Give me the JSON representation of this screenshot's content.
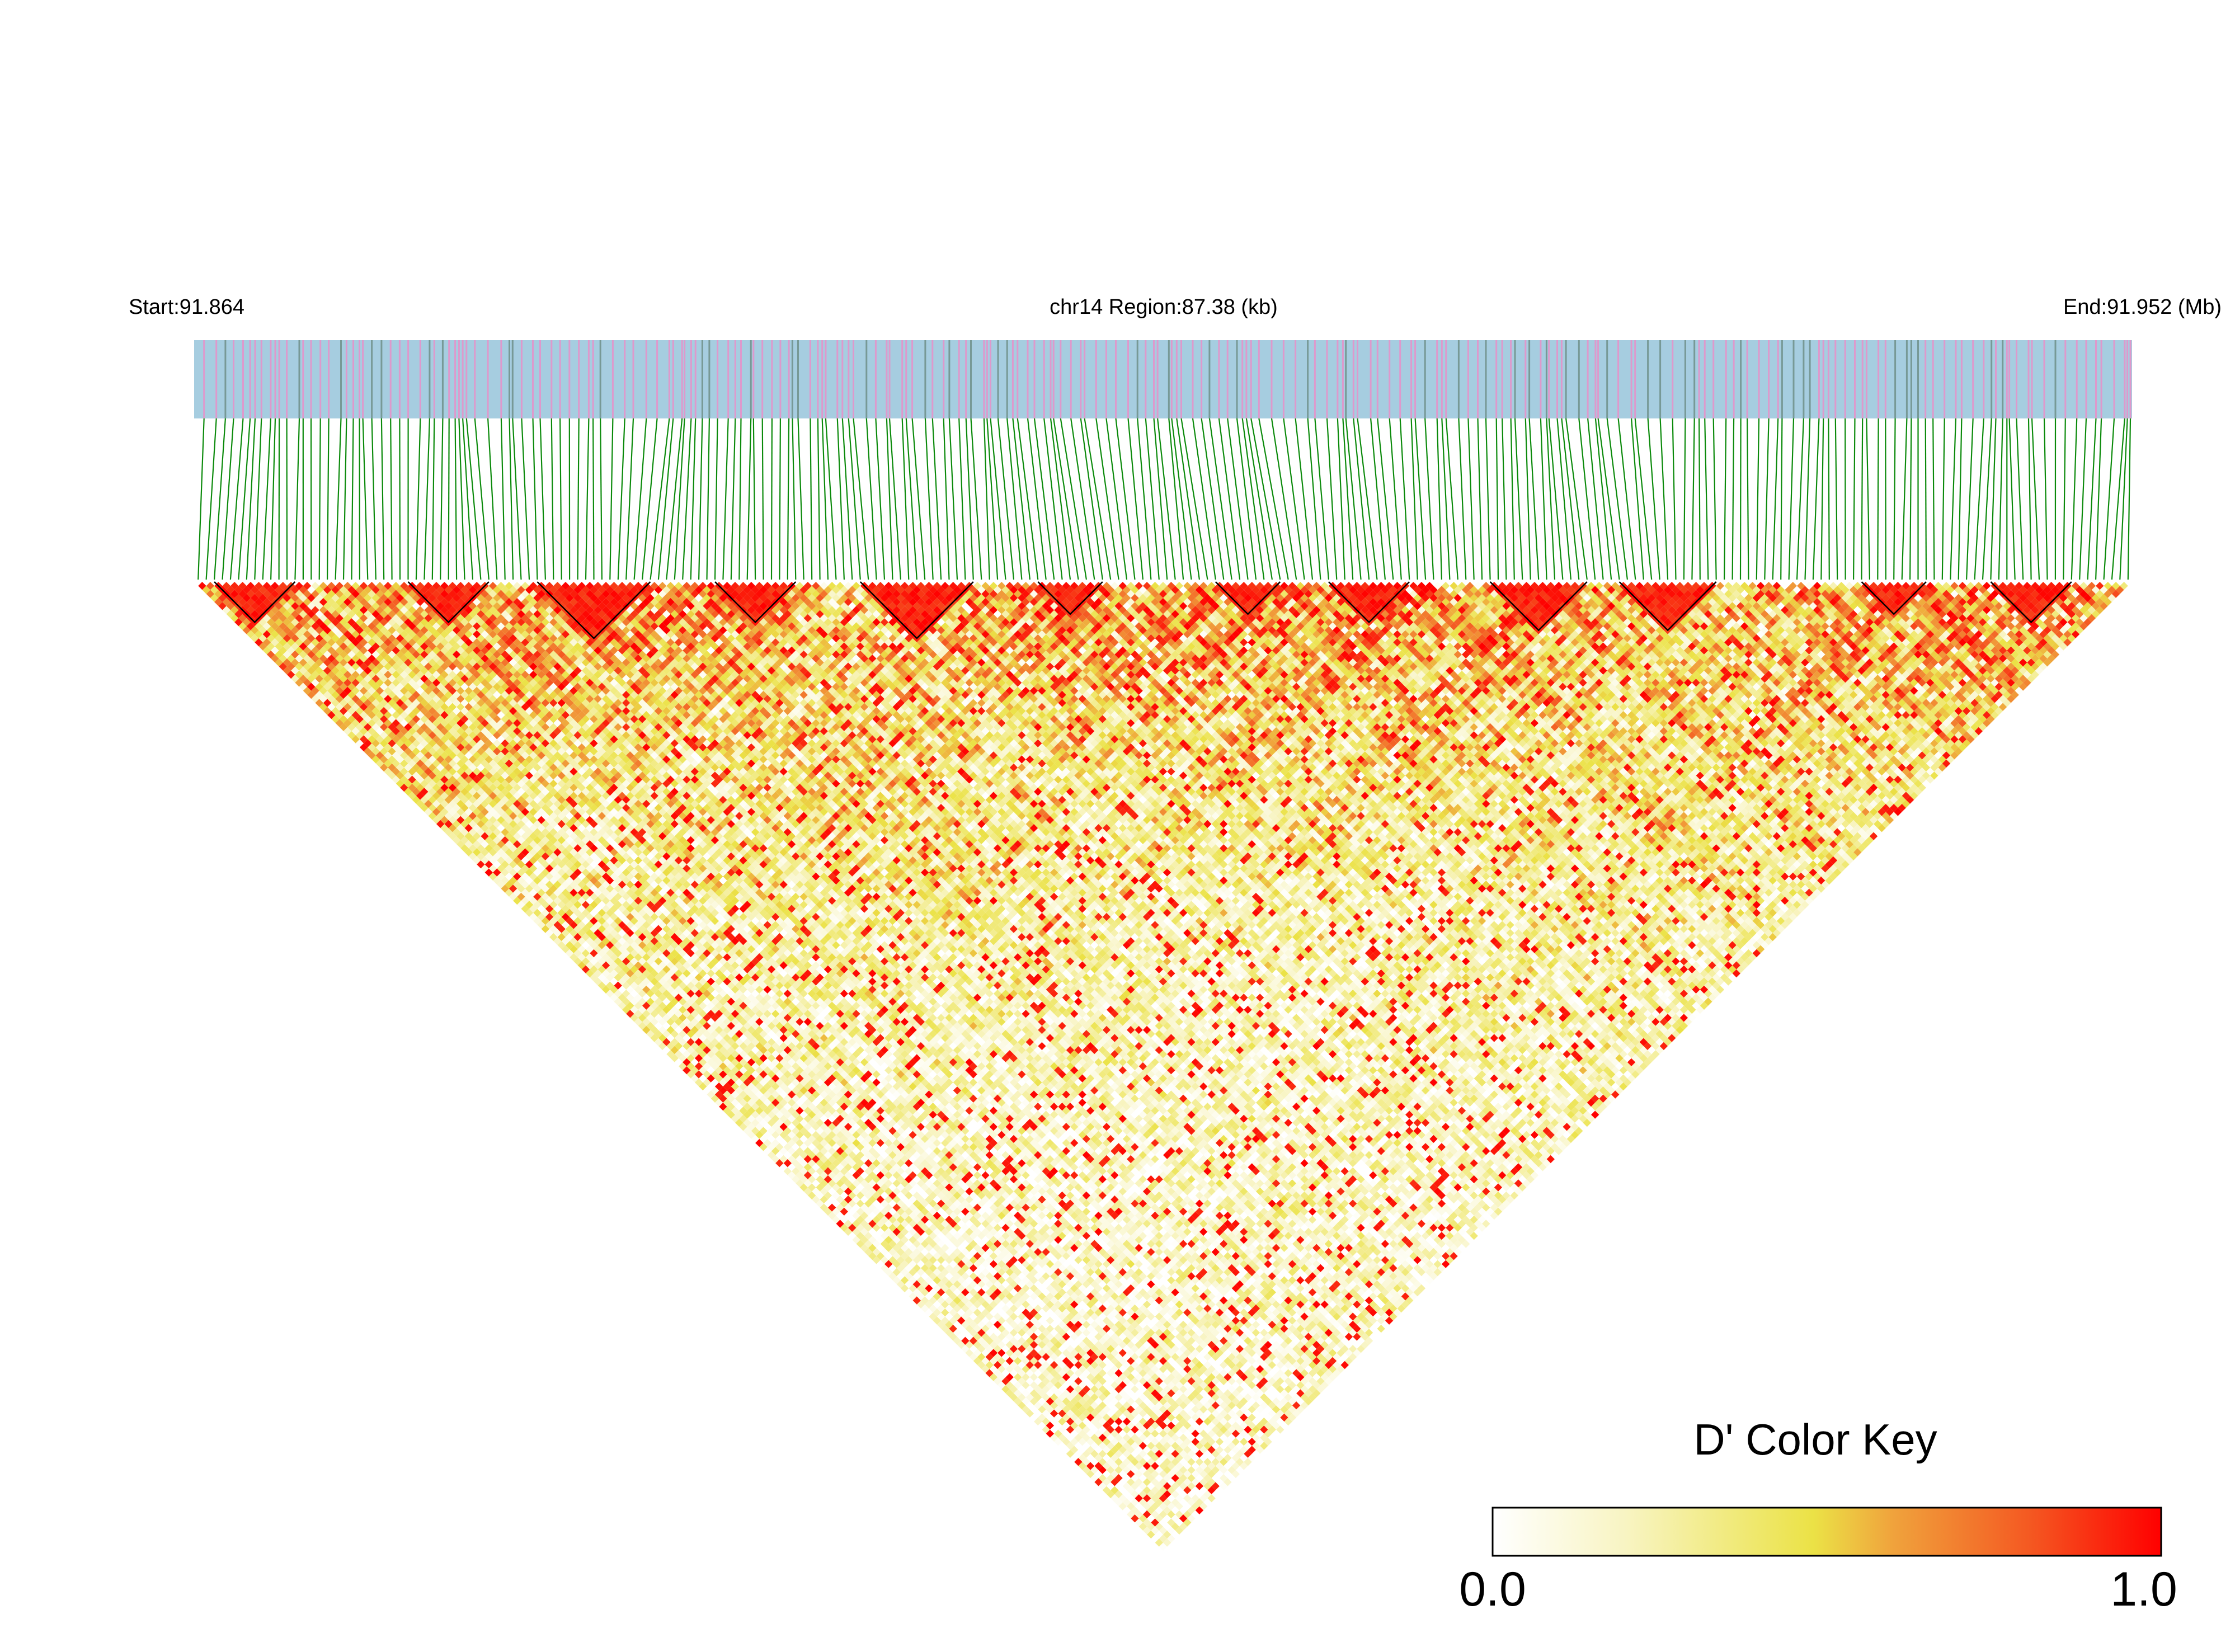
{
  "chart_data": {
    "type": "heatmap",
    "title": "",
    "chromosome": "chr14",
    "header": {
      "start_label": "Start:91.864",
      "region_label": "chr14 Region:87.38 (kb)",
      "end_label": "End:91.952 (Mb)"
    },
    "region": {
      "start_mb": 91.864,
      "end_mb": 91.952,
      "length_kb": 87.38
    },
    "snp_count": 240,
    "matrix_description": "pairwise D' linkage disequilibrium values between SNPs, shown as a rotated lower-triangle heatmap; values range 0.0 to 1.0",
    "color_key": {
      "title": "D' Color Key",
      "min_label": "0.0",
      "max_label": "1.0",
      "min": 0.0,
      "max": 1.0,
      "colors": [
        "#ffffff",
        "#f5ef9a",
        "#ebe246",
        "#f0a23c",
        "#f45a22",
        "#ff0000"
      ]
    },
    "colors": {
      "gene_track": "#a6cde0",
      "snp_marks": [
        "#e88fc8",
        "#6f8f88"
      ],
      "connector_lines": "#0b8a0b",
      "block_outline": "#000000"
    }
  }
}
